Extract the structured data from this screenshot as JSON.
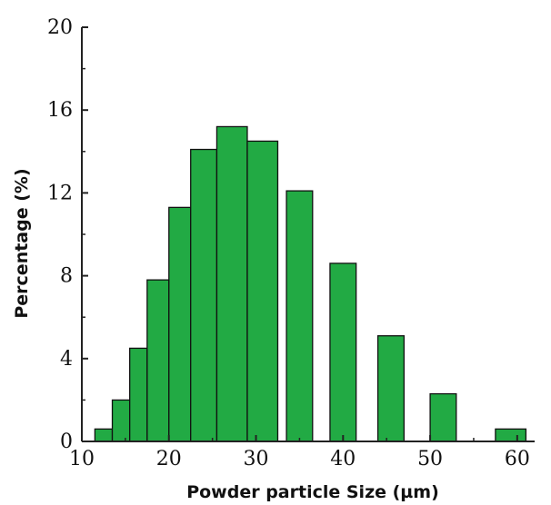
{
  "chart_data": {
    "type": "bar",
    "title": "",
    "xlabel": "Powder particle Size (µm)",
    "ylabel": "Percentage (%)",
    "xlim": [
      10,
      62
    ],
    "ylim": [
      0,
      20
    ],
    "x_ticks": [
      10,
      20,
      30,
      40,
      50,
      60
    ],
    "y_ticks": [
      0,
      4,
      8,
      12,
      16,
      20
    ],
    "x_tick_labels": [
      "10",
      "20",
      "30",
      "40",
      "50",
      "60"
    ],
    "y_tick_labels": [
      "0",
      "4",
      "8",
      "12",
      "16",
      "20"
    ],
    "grid": false,
    "legend": "none",
    "bar_color": "#22aa44",
    "bars": [
      {
        "x0": 11.5,
        "x1": 13.5,
        "value": 0.6
      },
      {
        "x0": 13.5,
        "x1": 15.5,
        "value": 2.0
      },
      {
        "x0": 15.5,
        "x1": 17.5,
        "value": 4.5
      },
      {
        "x0": 17.5,
        "x1": 20.0,
        "value": 7.8
      },
      {
        "x0": 20.0,
        "x1": 22.5,
        "value": 11.3
      },
      {
        "x0": 22.5,
        "x1": 25.5,
        "value": 14.1
      },
      {
        "x0": 25.5,
        "x1": 29.0,
        "value": 15.2
      },
      {
        "x0": 29.0,
        "x1": 32.5,
        "value": 14.5
      },
      {
        "x0": 33.5,
        "x1": 36.5,
        "value": 12.1
      },
      {
        "x0": 38.5,
        "x1": 41.5,
        "value": 8.6
      },
      {
        "x0": 44.0,
        "x1": 47.0,
        "value": 5.1
      },
      {
        "x0": 50.0,
        "x1": 53.0,
        "value": 2.3
      },
      {
        "x0": 57.5,
        "x1": 61.0,
        "value": 0.6
      }
    ]
  }
}
